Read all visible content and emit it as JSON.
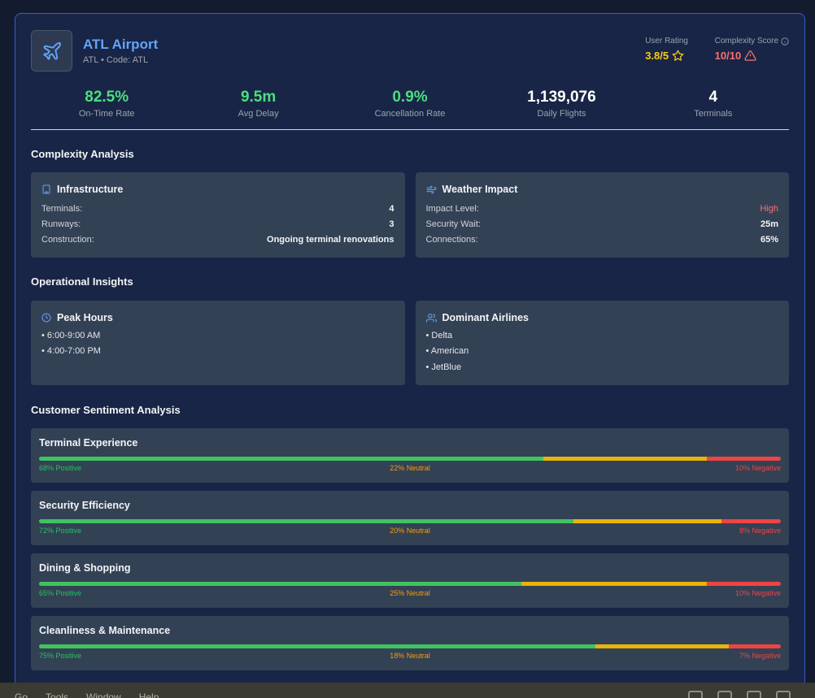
{
  "airport": {
    "name": "ATL Airport",
    "code_line": "ATL • Code: ATL"
  },
  "rating": {
    "label": "User Rating",
    "value": "3.8/5"
  },
  "complexity": {
    "label": "Complexity Score",
    "value": "10/10"
  },
  "stats": [
    {
      "value": "82.5%",
      "label": "On-Time Rate",
      "color": "#4ade80"
    },
    {
      "value": "9.5m",
      "label": "Avg Delay",
      "color": "#4ade80"
    },
    {
      "value": "0.9%",
      "label": "Cancellation Rate",
      "color": "#4ade80"
    },
    {
      "value": "1,139,076",
      "label": "Daily Flights",
      "color": "#ffffff"
    },
    {
      "value": "4",
      "label": "Terminals",
      "color": "#ffffff"
    }
  ],
  "complexity_analysis": {
    "title": "Complexity Analysis",
    "infrastructure": {
      "title": "Infrastructure",
      "rows": [
        {
          "k": "Terminals:",
          "v": "4"
        },
        {
          "k": "Runways:",
          "v": "3"
        },
        {
          "k": "Construction:",
          "v": "Ongoing terminal renovations"
        }
      ]
    },
    "weather": {
      "title": "Weather Impact",
      "rows": [
        {
          "k": "Impact Level:",
          "v": "High"
        },
        {
          "k": "Security Wait:",
          "v": "25m"
        },
        {
          "k": "Connections:",
          "v": "65%"
        }
      ]
    }
  },
  "operational": {
    "title": "Operational Insights",
    "peak": {
      "title": "Peak Hours",
      "items": [
        "• 6:00-9:00 AM",
        "• 4:00-7:00 PM"
      ]
    },
    "airlines": {
      "title": "Dominant Airlines",
      "items": [
        "• Delta",
        "• American",
        "• JetBlue"
      ]
    }
  },
  "sentiment": {
    "title": "Customer Sentiment Analysis",
    "items": [
      {
        "title": "Terminal Experience",
        "positive": 68,
        "neutral": 22,
        "negative": 10,
        "pos_label": "68% Positive",
        "neu_label": "22% Neutral",
        "neg_label": "10% Negative"
      },
      {
        "title": "Security Efficiency",
        "positive": 72,
        "neutral": 20,
        "negative": 8,
        "pos_label": "72% Positive",
        "neu_label": "20% Neutral",
        "neg_label": "8% Negative"
      },
      {
        "title": "Dining & Shopping",
        "positive": 65,
        "neutral": 25,
        "negative": 10,
        "pos_label": "65% Positive",
        "neu_label": "25% Neutral",
        "neg_label": "10% Negative"
      },
      {
        "title": "Cleanliness & Maintenance",
        "positive": 75,
        "neutral": 18,
        "negative": 7,
        "pos_label": "75% Positive",
        "neu_label": "18% Neutral",
        "neg_label": "7% Negative"
      }
    ]
  },
  "menubar": {
    "items": [
      "Go",
      "Tools",
      "Window",
      "Help"
    ]
  }
}
